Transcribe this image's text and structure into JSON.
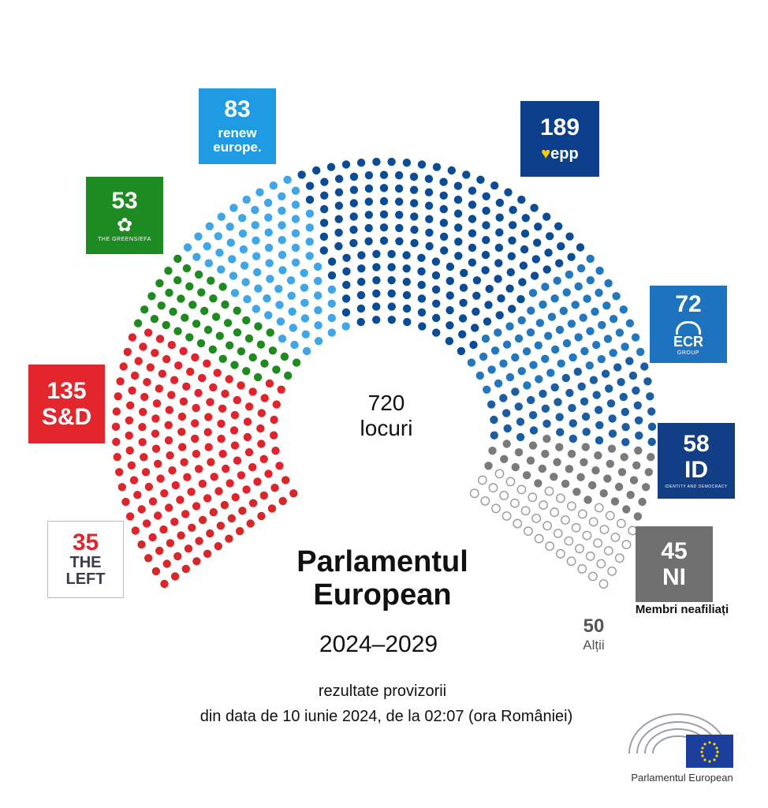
{
  "chart_data": {
    "type": "hemicycle",
    "total": 720,
    "total_label": "locuri",
    "series": [
      {
        "name": "THE LEFT",
        "value": 35,
        "color": "#d62828"
      },
      {
        "name": "S&D",
        "value": 135,
        "color": "#e0242b"
      },
      {
        "name": "THE GREENS/EFA",
        "value": 53,
        "color": "#1f8a1f"
      },
      {
        "name": "renew europe.",
        "value": 83,
        "color": "#3fa6e8"
      },
      {
        "name": "epp",
        "value": 189,
        "color": "#0a4d96"
      },
      {
        "name": "ECR",
        "value": 72,
        "color": "#2377be"
      },
      {
        "name": "ID",
        "value": 58,
        "color": "#1a5da3"
      },
      {
        "name": "NI",
        "value": 45,
        "color": "#7a7a7a"
      },
      {
        "name": "Alții",
        "value": 50,
        "color": "#ffffff"
      }
    ]
  },
  "badges": {
    "renew": {
      "value": "83",
      "line1": "renew",
      "line2": "europe.",
      "color": "#1f9be4"
    },
    "epp": {
      "value": "189",
      "text": "epp",
      "color": "#0b3f8c"
    },
    "greens": {
      "value": "53",
      "text": "THE GREENS/EFA",
      "color": "#1e8a22"
    },
    "ecr": {
      "value": "72",
      "text": "ECR",
      "small": "GROUP",
      "color": "#1e73be"
    },
    "sd": {
      "value": "135",
      "text": "S&D",
      "color": "#e3262b"
    },
    "id": {
      "value": "58",
      "text": "ID",
      "small": "IDENTITY AND DEMOCRACY",
      "color": "#123e86"
    },
    "left": {
      "value": "35",
      "line1": "THE",
      "line2": "LEFT",
      "color": "#e0262b"
    },
    "ni": {
      "value": "45",
      "text": "NI",
      "color": "#707070",
      "caption": "Membri neafiliați"
    },
    "others": {
      "value": "50",
      "label": "Alții"
    }
  },
  "center": {
    "total": "720",
    "label": "locuri"
  },
  "title": {
    "line1": "Parlamentul",
    "line2": "European",
    "years": "2024–2029"
  },
  "note": {
    "line1": "rezultate provizorii",
    "line2": "din data de 10 iunie 2024, de la 02:07 (ora României)"
  },
  "footer": {
    "caption": "Parlamentul European"
  }
}
